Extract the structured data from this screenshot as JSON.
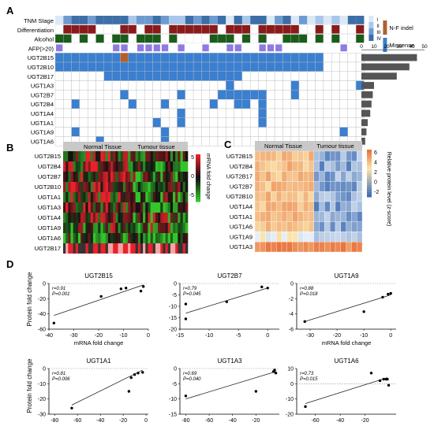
{
  "panelA": {
    "panel_label": "A",
    "row_labels": [
      "TNM Stage",
      "Differentiation",
      "Alcohol",
      "AFP(>20)",
      "UGT2B15",
      "UGT2B10",
      "UGT2B17",
      "UGT1A3",
      "UGT2B7",
      "UGT2B4",
      "UGT1A4",
      "UGT1A1",
      "UGT1A9",
      "UGT1A6"
    ],
    "legend_stage": [
      "I",
      "II",
      "III",
      "IV"
    ],
    "legend_mut": [
      "N-F indel",
      "Missense"
    ],
    "bar_axis_ticks": [
      "0",
      "10",
      "20",
      "30",
      "40",
      "50"
    ],
    "chart_data": {
      "type": "bar",
      "categories": [
        "UGT2B15",
        "UGT2B10",
        "UGT2B17",
        "UGT1A3",
        "UGT2B7",
        "UGT2B4",
        "UGT1A4",
        "UGT1A1",
        "UGT1A9",
        "UGT1A6"
      ],
      "values": [
        44,
        38,
        28,
        10,
        9,
        8,
        7,
        5,
        4,
        3
      ],
      "xlim": [
        0,
        50
      ]
    },
    "colors": {
      "stage": [
        "#dbe8f6",
        "#a8c7ea",
        "#6d9bd0",
        "#3c6ea8"
      ],
      "diff": "#8b1a1a",
      "alcohol": "#1a5d1a",
      "afp": "#8e7ae0",
      "mut": "#3a7fd0",
      "indel": "#b06030"
    }
  },
  "panelB": {
    "panel_label": "B",
    "header": [
      "Normal Tissue",
      "Tumour tissue"
    ],
    "rows": [
      "UGT2B15",
      "UGT2B4",
      "UGT2B7",
      "UGT2B10",
      "UGT1A1",
      "UGT1A3",
      "UGT1A4",
      "UGT1A9",
      "UGT1A6",
      "UGT2B17"
    ],
    "scale_ticks": [
      "5",
      "0",
      "-5"
    ],
    "scale_label": "mRNA fold change",
    "colors": {
      "high": "#e8212b",
      "mid": "#111111",
      "low": "#33c52a"
    }
  },
  "panelC": {
    "panel_label": "C",
    "header": [
      "Normal Tissue",
      "Tumour tissue"
    ],
    "rows": [
      "UGT2B15",
      "UGT2B4",
      "UGT2B17",
      "UGT2B7",
      "UGT2B10",
      "UGT1A4",
      "UGT1A1",
      "UGT1A6",
      "UGT1A9",
      "UGT1A3"
    ],
    "scale_ticks": [
      "6",
      "4",
      "2",
      "0",
      "-2"
    ],
    "scale_label": "Relative protein level (z-score)",
    "colors": {
      "high": "#e8733d",
      "mid": "#fbe7b0",
      "low": "#3f6eb4"
    }
  },
  "panelD": {
    "panel_label": "D",
    "ylabel": "Protein fold change",
    "chart_data": [
      {
        "type": "scatter",
        "title": "UGT2B15",
        "r": "r=0.91",
        "p": "P=0.001",
        "xlabel": "mRNA fold change",
        "xlim": [
          -40,
          0
        ],
        "ylim": [
          -60,
          0
        ],
        "xticks": [
          "-40",
          "-30",
          "-20",
          "-10",
          "0"
        ],
        "yticks": [
          "0",
          "-20",
          "-40",
          "-60"
        ],
        "x": [
          -38,
          -19,
          -11,
          -9,
          -3,
          -2
        ],
        "y": [
          -52,
          -17,
          -7,
          -6,
          -10,
          -4
        ],
        "fit": [
          [
            -38,
            -42
          ],
          [
            -2,
            -2
          ]
        ]
      },
      {
        "type": "scatter",
        "title": "UGT2B7",
        "r": "r=0.79",
        "p": "P=0.045",
        "xlabel": "",
        "xlim": [
          -15,
          2
        ],
        "ylim": [
          -20,
          0
        ],
        "xticks": [
          "-15",
          "-10",
          "-5",
          "0"
        ],
        "yticks": [
          "0",
          "-5",
          "-10",
          "-15",
          "-20"
        ],
        "x": [
          -14,
          -14,
          -7,
          -1,
          0
        ],
        "y": [
          -15.5,
          -9,
          -8,
          -1.5,
          -2
        ],
        "fit": [
          [
            -14,
            -13
          ],
          [
            0,
            -2
          ]
        ]
      },
      {
        "type": "scatter",
        "title": "UGT1A9",
        "r": "r=0.88",
        "p": "P=0.018",
        "xlabel": "mRNA fold change",
        "xlim": [
          -35,
          2
        ],
        "ylim": [
          -6,
          0
        ],
        "xticks": [
          "-30",
          "-20",
          "-10",
          "0"
        ],
        "yticks": [
          "0",
          "-2",
          "-4",
          "-6"
        ],
        "x": [
          -32,
          -10,
          -3,
          -1,
          0
        ],
        "y": [
          -5,
          -3.7,
          -1.8,
          -1.4,
          -1.3
        ],
        "fit": [
          [
            -32,
            -5
          ],
          [
            0,
            -1.5
          ]
        ]
      },
      {
        "type": "scatter",
        "title": "UGT1A1",
        "r": "r=0.81",
        "p": "P=0.006",
        "xlabel": "",
        "xlim": [
          -85,
          2
        ],
        "ylim": [
          -30,
          0
        ],
        "xticks": [
          "-80",
          "-60",
          "-40",
          "-20",
          "0"
        ],
        "yticks": [
          "0",
          "-10",
          "-20",
          "-30"
        ],
        "x": [
          -65,
          -15,
          -13,
          -10,
          -7,
          -3
        ],
        "y": [
          -26,
          -15,
          -6,
          -4,
          -3,
          -2.5
        ],
        "fit": [
          [
            -65,
            -24
          ],
          [
            -3,
            -1
          ]
        ]
      },
      {
        "type": "scatter",
        "title": "UGT1A3",
        "r": "r=0.69",
        "p": "P=0.040",
        "xlabel": "",
        "xlim": [
          -85,
          0
        ],
        "ylim": [
          -15,
          0
        ],
        "xticks": [
          "-80",
          "-60",
          "-40",
          "-20"
        ],
        "yticks": [
          "0",
          "-5",
          "-10",
          "-15"
        ],
        "x": [
          -80,
          -20,
          -5,
          -4,
          -3
        ],
        "y": [
          -9,
          -7.5,
          -1,
          -0.5,
          -1.5
        ],
        "fit": [
          [
            -80,
            -10
          ],
          [
            -3,
            -1
          ]
        ]
      },
      {
        "type": "scatter",
        "title": "UGT1A6",
        "r": "r=0.73",
        "p": "P=0.015",
        "xlabel": "",
        "xlim": [
          -75,
          5
        ],
        "ylim": [
          -20,
          10
        ],
        "xticks": [
          "-60",
          "-40",
          "-20"
        ],
        "yticks": [
          "10",
          "0",
          "-10",
          "-20"
        ],
        "x": [
          -68,
          -15,
          -8,
          -5,
          -3,
          -2,
          -1
        ],
        "y": [
          -15,
          7,
          2,
          3,
          3,
          3,
          -1
        ],
        "fit": [
          [
            -68,
            -13
          ],
          [
            -2,
            4
          ]
        ]
      }
    ]
  }
}
